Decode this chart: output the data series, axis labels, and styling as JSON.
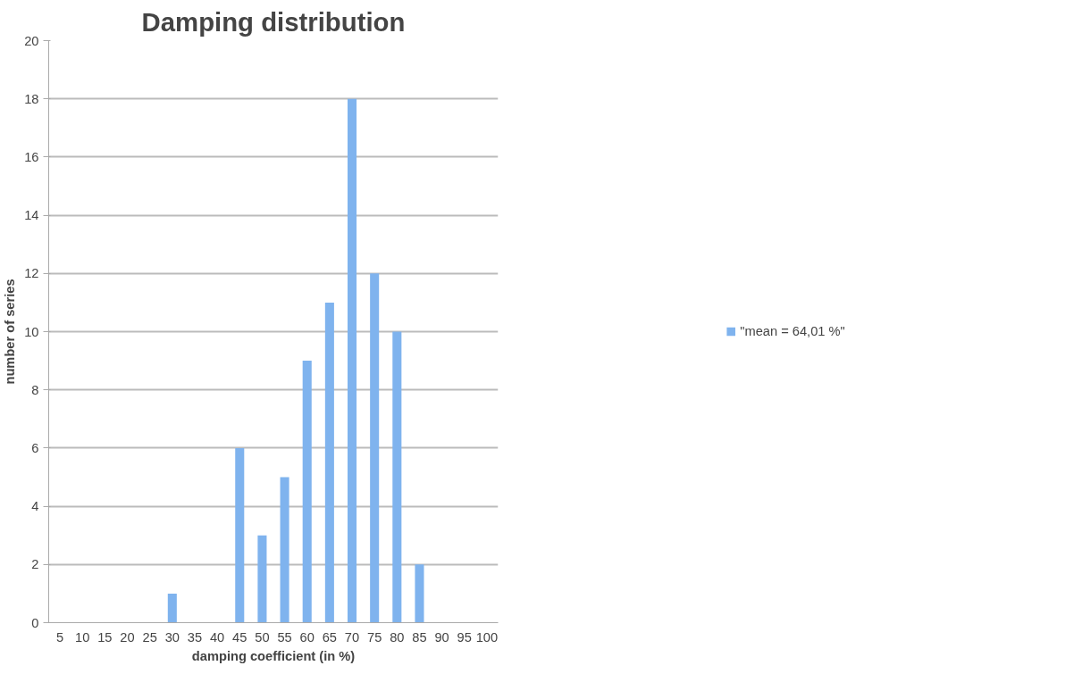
{
  "chart_data": {
    "type": "bar",
    "title": "Damping distribution",
    "xlabel": "damping coefficient (in %)",
    "ylabel": "number of series",
    "categories": [
      "5",
      "10",
      "15",
      "20",
      "25",
      "30",
      "35",
      "40",
      "45",
      "50",
      "55",
      "60",
      "65",
      "70",
      "75",
      "80",
      "85",
      "90",
      "95",
      "100"
    ],
    "series": [
      {
        "name": "\"mean = 64,01 %\"",
        "color": "#7fb3ee",
        "values": [
          0,
          0,
          0,
          0,
          0,
          1,
          0,
          0,
          6,
          3,
          5,
          9,
          11,
          18,
          12,
          10,
          2,
          0,
          0,
          0
        ]
      }
    ],
    "ylim": [
      0,
      20
    ],
    "yticks": [
      0,
      2,
      4,
      6,
      8,
      10,
      12,
      14,
      16,
      18,
      20
    ],
    "grid": "y",
    "legend": "right"
  }
}
